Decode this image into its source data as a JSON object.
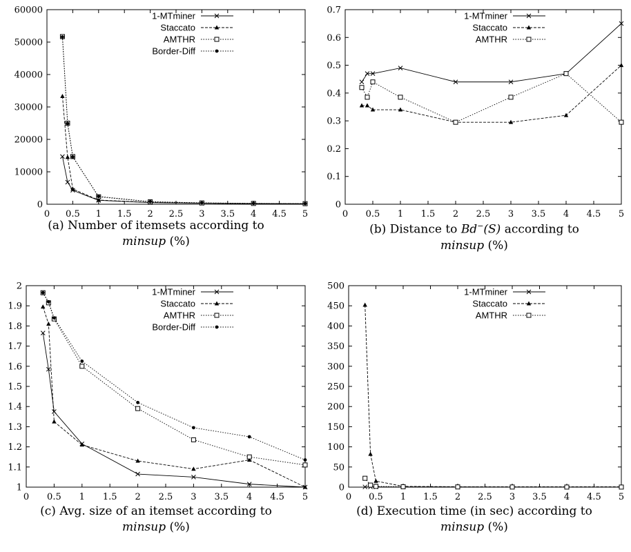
{
  "chart_data": [
    {
      "type": "line",
      "caption": {
        "letter": "(a)",
        "line1": "Number of itemsets according to",
        "var": "minsup",
        "unit": "(%)"
      },
      "x_ticks": [
        "0",
        "0.5",
        "1",
        "1.5",
        "2",
        "2.5",
        "3",
        "3.5",
        "4",
        "4.5",
        "5"
      ],
      "y_ticks": [
        "0",
        "10000",
        "20000",
        "30000",
        "40000",
        "50000",
        "60000"
      ],
      "xlim": [
        0,
        5
      ],
      "ylim": [
        0,
        60000
      ],
      "legend_position": "top-right",
      "grid": false,
      "x": [
        0.3,
        0.4,
        0.5,
        1,
        2,
        3,
        4,
        5
      ],
      "series": [
        {
          "name": "1-MTminer",
          "marker": "x",
          "dash": "solid",
          "values": [
            14700,
            6800,
            4300,
            1200,
            500,
            300,
            200,
            150
          ]
        },
        {
          "name": "Staccato",
          "marker": "triangle",
          "dash": "dashed",
          "values": [
            33300,
            14500,
            4700,
            1300,
            550,
            320,
            220,
            170
          ]
        },
        {
          "name": "AMTHR",
          "marker": "square",
          "dash": "dotted",
          "values": [
            51700,
            25000,
            14700,
            2300,
            750,
            400,
            250,
            180
          ]
        },
        {
          "name": "Border-Diff",
          "marker": "dot",
          "dash": "dotted",
          "values": [
            51600,
            24900,
            14600,
            2400,
            800,
            420,
            260,
            190
          ]
        }
      ]
    },
    {
      "type": "line",
      "caption": {
        "letter": "(b)",
        "line1": "Distance to",
        "math": "Bd",
        "sup": "−",
        "math2": "(S)",
        "line1b": "according to",
        "var": "minsup",
        "unit": "(%)"
      },
      "x_ticks": [
        "0",
        "0.5",
        "1",
        "1.5",
        "2",
        "2.5",
        "3",
        "3.5",
        "4",
        "4.5",
        "5"
      ],
      "y_ticks": [
        "0",
        "0.1",
        "0.2",
        "0.3",
        "0.4",
        "0.5",
        "0.6",
        "0.7"
      ],
      "xlim": [
        0,
        5
      ],
      "ylim": [
        0,
        0.7
      ],
      "legend_position": "top-right",
      "grid": false,
      "x": [
        0.3,
        0.4,
        0.5,
        1,
        2,
        3,
        4,
        5
      ],
      "series": [
        {
          "name": "1-MTminer",
          "marker": "x",
          "dash": "solid",
          "values": [
            0.44,
            0.47,
            0.47,
            0.49,
            0.44,
            0.44,
            0.47,
            0.65
          ]
        },
        {
          "name": "Staccato",
          "marker": "triangle",
          "dash": "dashed",
          "values": [
            0.355,
            0.355,
            0.34,
            0.34,
            0.295,
            0.295,
            0.32,
            0.5
          ]
        },
        {
          "name": "AMTHR",
          "marker": "square",
          "dash": "dotted",
          "values": [
            0.42,
            0.385,
            0.44,
            0.385,
            0.295,
            0.385,
            0.47,
            0.295
          ]
        }
      ]
    },
    {
      "type": "line",
      "caption": {
        "letter": "(c)",
        "line1": "Avg. size of an itemset according to",
        "var": "minsup",
        "unit": "(%)"
      },
      "x_ticks": [
        "0",
        "0.5",
        "1",
        "1.5",
        "2",
        "2.5",
        "3",
        "3.5",
        "4",
        "4.5",
        "5"
      ],
      "y_ticks": [
        "1",
        "1.1",
        "1.2",
        "1.3",
        "1.4",
        "1.5",
        "1.6",
        "1.7",
        "1.8",
        "1.9",
        "2"
      ],
      "xlim": [
        0,
        5
      ],
      "ylim": [
        1,
        2
      ],
      "legend_position": "top-right",
      "grid": false,
      "x": [
        0.3,
        0.4,
        0.5,
        1,
        2,
        3,
        4,
        5
      ],
      "series": [
        {
          "name": "1-MTminer",
          "marker": "x",
          "dash": "solid",
          "values": [
            1.765,
            1.585,
            1.375,
            1.215,
            1.065,
            1.05,
            1.015,
            1.0
          ]
        },
        {
          "name": "Staccato",
          "marker": "triangle",
          "dash": "dashed",
          "values": [
            1.895,
            1.81,
            1.325,
            1.21,
            1.13,
            1.09,
            1.135,
            1.0
          ]
        },
        {
          "name": "AMTHR",
          "marker": "square",
          "dash": "dotted",
          "values": [
            1.965,
            1.915,
            1.835,
            1.6,
            1.39,
            1.235,
            1.15,
            1.11
          ]
        },
        {
          "name": "Border-Diff",
          "marker": "dot",
          "dash": "dotted",
          "values": [
            1.965,
            1.92,
            1.84,
            1.625,
            1.42,
            1.295,
            1.25,
            1.135
          ]
        }
      ]
    },
    {
      "type": "line",
      "caption": {
        "letter": "(d)",
        "line1": "Execution time (in sec) according to",
        "var": "minsup",
        "unit": "(%)"
      },
      "x_ticks": [
        "0",
        "0.5",
        "1",
        "1.5",
        "2",
        "2.5",
        "3",
        "3.5",
        "4",
        "4.5",
        "5"
      ],
      "y_ticks": [
        "0",
        "50",
        "100",
        "150",
        "200",
        "250",
        "300",
        "350",
        "400",
        "450",
        "500"
      ],
      "xlim": [
        0,
        5
      ],
      "ylim": [
        0,
        500
      ],
      "legend_position": "top-right",
      "grid": false,
      "x": [
        0.3,
        0.4,
        0.5,
        1,
        2,
        3,
        4,
        5
      ],
      "series": [
        {
          "name": "1-MTminer",
          "marker": "x",
          "dash": "solid",
          "values": [
            0.5,
            0.5,
            0.5,
            0.3,
            0.2,
            0.1,
            0.1,
            0.1
          ]
        },
        {
          "name": "Staccato",
          "marker": "triangle",
          "dash": "dashed",
          "values": [
            452,
            82,
            15,
            2,
            1,
            1,
            1,
            1
          ]
        },
        {
          "name": "AMTHR",
          "marker": "square",
          "dash": "dotted",
          "values": [
            22,
            5,
            2,
            1,
            0.5,
            0.3,
            0.2,
            0.2
          ]
        }
      ]
    }
  ]
}
